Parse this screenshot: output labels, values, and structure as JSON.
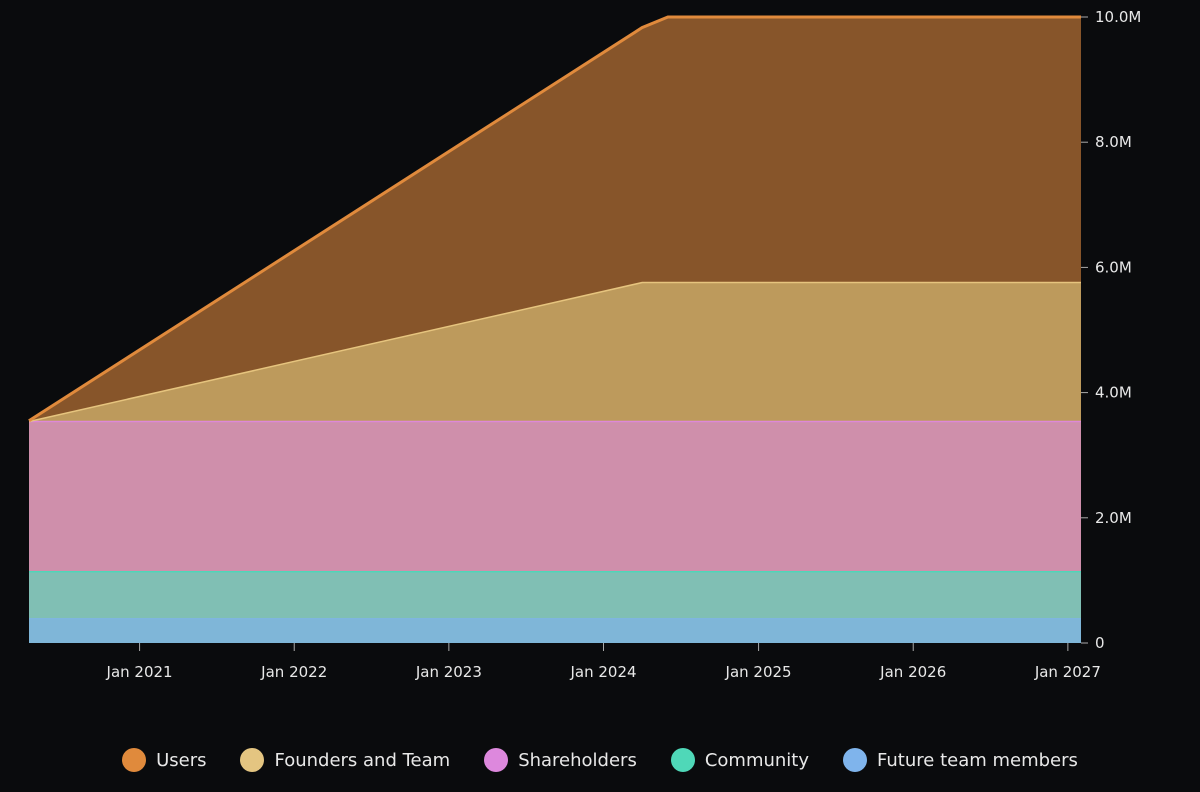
{
  "chart_data": {
    "type": "area",
    "stacked": true,
    "x": [
      "2020-04-15",
      "2024-04-01",
      "2024-06-01",
      "2027-02-01"
    ],
    "xlim": [
      "2020-04-15",
      "2027-02-01"
    ],
    "x_ticks": [
      "Jan 2021",
      "Jan 2022",
      "Jan 2023",
      "Jan 2024",
      "Jan 2025",
      "Jan 2026",
      "Jan 2027"
    ],
    "x_tick_dates": [
      "2021-01-01",
      "2022-01-01",
      "2023-01-01",
      "2024-01-01",
      "2025-01-01",
      "2026-01-01",
      "2027-01-01"
    ],
    "ylim": [
      0,
      10000000
    ],
    "y_ticks": [
      0,
      2000000,
      4000000,
      6000000,
      8000000,
      10000000
    ],
    "y_tick_labels": [
      "0",
      "2.0M",
      "4.0M",
      "6.0M",
      "8.0M",
      "10.0M"
    ],
    "y_axis_position": "right",
    "grid": false,
    "legend_position": "bottom",
    "series": [
      {
        "name": "Future team members",
        "values": [
          400000,
          400000,
          400000,
          400000
        ],
        "fill": "#7fb6d8",
        "line": "#7fb6e0",
        "legend_color": "#7fb4ec"
      },
      {
        "name": "Community",
        "values": [
          750000,
          750000,
          750000,
          750000
        ],
        "fill": "#80bfb4",
        "line": "#4fd6b8",
        "legend_color": "#4fd8b8"
      },
      {
        "name": "Shareholders",
        "values": [
          2400000,
          2400000,
          2400000,
          2400000
        ],
        "fill": "#cf8fab",
        "line": "#dd88d8",
        "legend_color": "#dd88dd"
      },
      {
        "name": "Founders and Team",
        "values": [
          0,
          2220000,
          2220000,
          2220000
        ],
        "fill": "#bd9a5c",
        "line": "#e6c47e",
        "legend_color": "#e4c581"
      },
      {
        "name": "Users",
        "values": [
          0,
          4060000,
          4230000,
          4230000
        ],
        "fill": "#87552a",
        "line": "#e08a3c",
        "legend_color": "#e08a3c"
      }
    ],
    "legend_order": [
      "Users",
      "Founders and Team",
      "Shareholders",
      "Community",
      "Future team members"
    ]
  }
}
